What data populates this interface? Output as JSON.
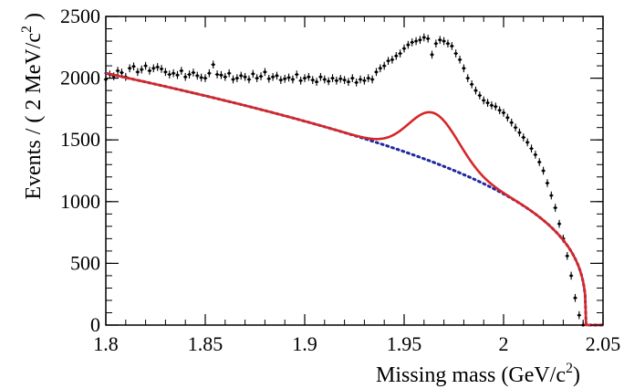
{
  "chart_data": {
    "type": "scatter",
    "xlabel": "Missing mass (GeV/c²)",
    "xlabel_main": "Missing mass (GeV/c",
    "xlabel_sup": "2",
    "xlabel_close": ")",
    "ylabel": "Events / ( 2 MeV/c² )",
    "ylabel_main": "Events / ( 2 MeV/c",
    "ylabel_sup": "2",
    "ylabel_close": " )",
    "xlim": [
      1.8,
      2.05
    ],
    "ylim": [
      0,
      2500
    ],
    "x_ticks": [
      "1.8",
      "1.85",
      "1.9",
      "1.95",
      "2",
      "2.05"
    ],
    "y_ticks": [
      "0",
      "500",
      "1000",
      "1500",
      "2000",
      "2500"
    ],
    "series": [
      {
        "kind": "points_with_errors",
        "color": "#000000",
        "error": 32,
        "x": [
          1.8,
          1.802,
          1.804,
          1.806,
          1.808,
          1.81,
          1.812,
          1.814,
          1.816,
          1.818,
          1.82,
          1.822,
          1.824,
          1.826,
          1.828,
          1.83,
          1.832,
          1.834,
          1.836,
          1.838,
          1.84,
          1.842,
          1.844,
          1.846,
          1.848,
          1.85,
          1.852,
          1.854,
          1.856,
          1.858,
          1.86,
          1.862,
          1.864,
          1.866,
          1.868,
          1.87,
          1.872,
          1.874,
          1.876,
          1.878,
          1.88,
          1.882,
          1.884,
          1.886,
          1.888,
          1.89,
          1.892,
          1.894,
          1.896,
          1.898,
          1.9,
          1.902,
          1.904,
          1.906,
          1.908,
          1.91,
          1.912,
          1.914,
          1.916,
          1.918,
          1.92,
          1.922,
          1.924,
          1.926,
          1.928,
          1.93,
          1.932,
          1.934,
          1.936,
          1.938,
          1.94,
          1.942,
          1.944,
          1.946,
          1.948,
          1.95,
          1.952,
          1.954,
          1.956,
          1.958,
          1.96,
          1.962,
          1.964,
          1.966,
          1.968,
          1.97,
          1.972,
          1.974,
          1.976,
          1.978,
          1.98,
          1.982,
          1.984,
          1.986,
          1.988,
          1.99,
          1.992,
          1.994,
          1.996,
          1.998,
          2.0,
          2.002,
          2.004,
          2.006,
          2.008,
          2.01,
          2.012,
          2.014,
          2.016,
          2.018,
          2.02,
          2.022,
          2.024,
          2.026,
          2.028,
          2.03,
          2.032,
          2.034,
          2.036,
          2.038,
          2.04
        ],
        "y": [
          1990,
          2030,
          2015,
          2060,
          2045,
          2010,
          2080,
          2095,
          2050,
          2070,
          2100,
          2060,
          2080,
          2090,
          2075,
          2050,
          2030,
          2040,
          2025,
          2060,
          2010,
          2030,
          2045,
          2020,
          2005,
          2000,
          2040,
          2110,
          2030,
          2025,
          2010,
          2040,
          1990,
          2000,
          2020,
          2010,
          1990,
          2035,
          2000,
          2015,
          2050,
          1995,
          2010,
          2020,
          1985,
          1995,
          2005,
          1990,
          2030,
          1980,
          2000,
          2010,
          1985,
          1970,
          2010,
          1990,
          1975,
          2000,
          1980,
          1995,
          1985,
          1970,
          2000,
          1965,
          1990,
          1980,
          2000,
          1990,
          2050,
          2080,
          2100,
          2140,
          2150,
          2180,
          2200,
          2240,
          2270,
          2290,
          2300,
          2310,
          2330,
          2320,
          2190,
          2280,
          2310,
          2300,
          2280,
          2260,
          2200,
          2150,
          2080,
          2000,
          1950,
          1900,
          1860,
          1820,
          1800,
          1780,
          1770,
          1740,
          1720,
          1680,
          1640,
          1600,
          1560,
          1520,
          1480,
          1430,
          1380,
          1320,
          1250,
          1150,
          1050,
          950,
          820,
          700,
          560,
          400,
          220,
          80,
          0
        ]
      },
      {
        "name": "",
        "kind": "line",
        "color": "#d62728",
        "style": "solid",
        "role": "total fit"
      },
      {
        "name": "",
        "kind": "line",
        "color": "#1f2a9c",
        "style": "dotted",
        "role": "background"
      }
    ]
  }
}
